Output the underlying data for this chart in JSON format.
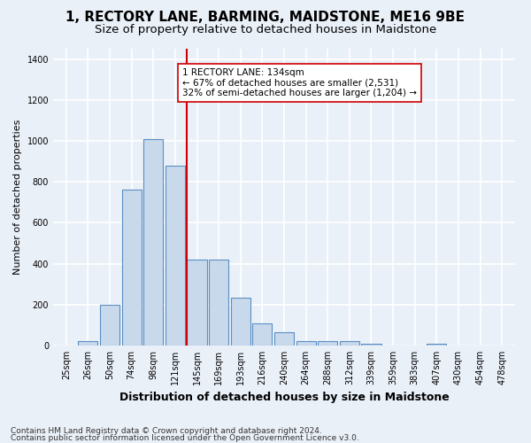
{
  "title": "1, RECTORY LANE, BARMING, MAIDSTONE, ME16 9BE",
  "subtitle": "Size of property relative to detached houses in Maidstone",
  "xlabel": "Distribution of detached houses by size in Maidstone",
  "ylabel": "Number of detached properties",
  "categories": [
    "25sqm",
    "26sqm",
    "50sqm",
    "74sqm",
    "98sqm",
    "121sqm",
    "145sqm",
    "169sqm",
    "193sqm",
    "216sqm",
    "240sqm",
    "264sqm",
    "288sqm",
    "312sqm",
    "339sqm",
    "359sqm",
    "383sqm",
    "407sqm",
    "430sqm",
    "454sqm",
    "478sqm"
  ],
  "values": [
    0,
    20,
    200,
    760,
    1010,
    880,
    420,
    420,
    235,
    110,
    65,
    20,
    20,
    20,
    10,
    0,
    0,
    10,
    0,
    0,
    0
  ],
  "bar_color": "#c9d9ec",
  "bar_edge_color": "#5a8fc3",
  "bar_edge_width": 0.8,
  "vline_color": "#cc0000",
  "vline_lw": 1.5,
  "ylim": [
    0,
    1450
  ],
  "yticks": [
    0,
    200,
    400,
    600,
    800,
    1000,
    1200,
    1400
  ],
  "annotation_line1": "1 RECTORY LANE: 134sqm",
  "annotation_line2": "← 67% of detached houses are smaller (2,531)",
  "annotation_line3": "32% of semi-detached houses are larger (1,204) →",
  "annotation_box_color": "#ffffff",
  "annotation_box_edge": "#cc0000",
  "footer1": "Contains HM Land Registry data © Crown copyright and database right 2024.",
  "footer2": "Contains public sector information licensed under the Open Government Licence v3.0.",
  "background_color": "#eaf0f8",
  "plot_bg_color": "#eaf0f8",
  "grid_color": "#ffffff",
  "title_fontsize": 11,
  "subtitle_fontsize": 9.5,
  "xlabel_fontsize": 9,
  "ylabel_fontsize": 8,
  "tick_fontsize": 7,
  "annot_fontsize": 7.5,
  "footer_fontsize": 6.5
}
